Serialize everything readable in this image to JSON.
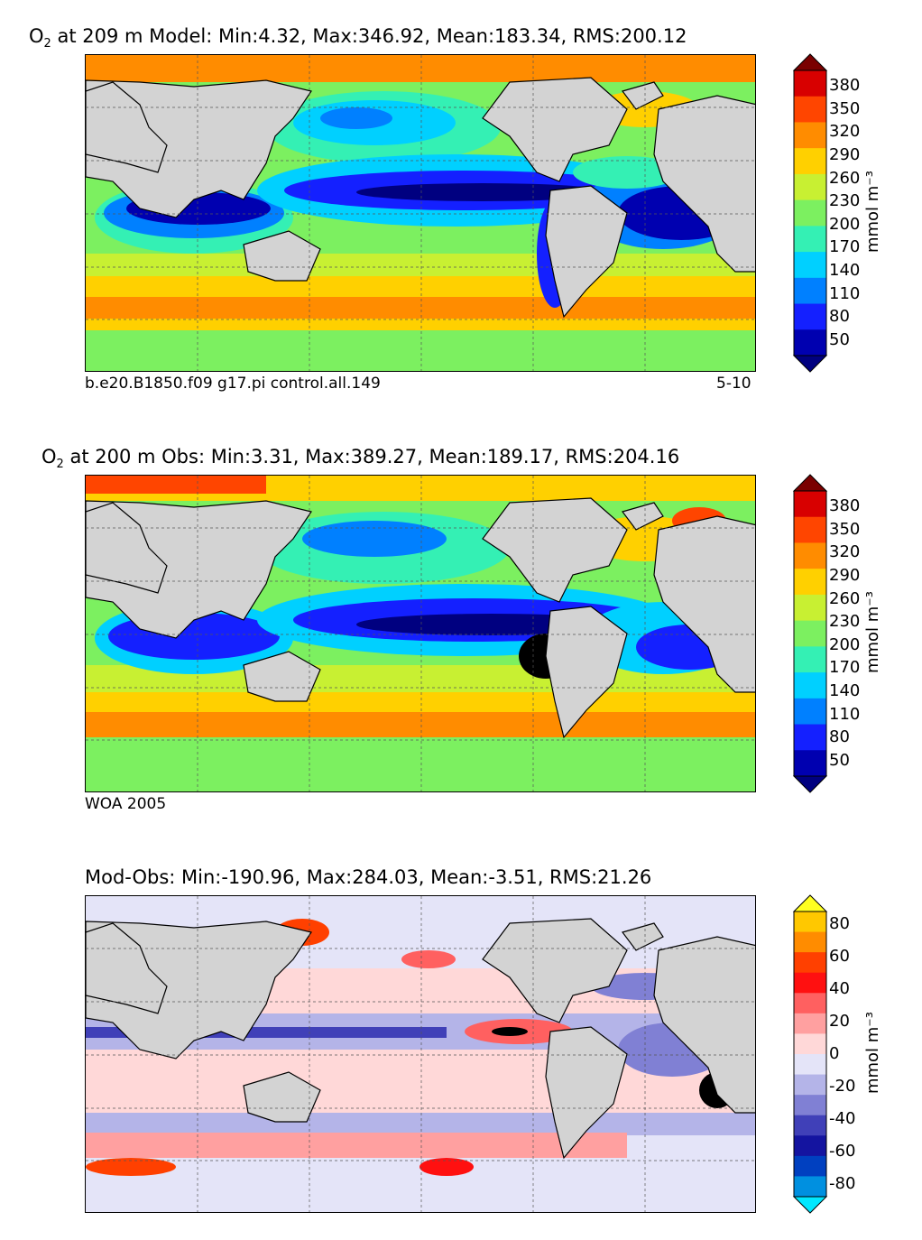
{
  "panels": [
    {
      "id": "model",
      "title_prefix": "O",
      "title_sub": "2",
      "title_rest": " at 209 m Model: Min:4.32, Max:346.92, Mean:183.34, RMS:200.12",
      "caption_left": "b.e20.B1850.f09 g17.pi control.all.149",
      "caption_right": "5-10",
      "colorbar_ticks": [
        "380",
        "350",
        "320",
        "290",
        "260",
        "230",
        "200",
        "170",
        "140",
        "110",
        "80",
        "50"
      ],
      "colorbar_colors": [
        "#7a0000",
        "#d80000",
        "#ff4500",
        "#ff8c00",
        "#ffd000",
        "#c8f032",
        "#7cf060",
        "#34f0b4",
        "#00d0ff",
        "#0080ff",
        "#1420ff",
        "#0000b0",
        "#000080"
      ],
      "unit": "mmol m⁻³"
    },
    {
      "id": "obs",
      "title_prefix": "O",
      "title_sub": "2",
      "title_rest": " at 200 m Obs: Min:3.31, Max:389.27, Mean:189.17, RMS:204.16",
      "caption_left": "WOA 2005",
      "caption_right": "",
      "colorbar_ticks": [
        "380",
        "350",
        "320",
        "290",
        "260",
        "230",
        "200",
        "170",
        "140",
        "110",
        "80",
        "50"
      ],
      "colorbar_colors": [
        "#7a0000",
        "#d80000",
        "#ff4500",
        "#ff8c00",
        "#ffd000",
        "#c8f032",
        "#7cf060",
        "#34f0b4",
        "#00d0ff",
        "#0080ff",
        "#1420ff",
        "#0000b0",
        "#000080"
      ],
      "unit": "mmol m⁻³"
    },
    {
      "id": "diff",
      "title_prefix": "",
      "title_sub": "",
      "title_rest": "Mod-Obs: Min:-190.96, Max:284.03, Mean:-3.51, RMS:21.26",
      "caption_left": "",
      "caption_right": "",
      "colorbar_ticks": [
        "80",
        "60",
        "40",
        "20",
        "0",
        "-20",
        "-40",
        "-60",
        "-80"
      ],
      "colorbar_colors": [
        "#ffff20",
        "#ffc800",
        "#ff8c00",
        "#ff4000",
        "#ff1010",
        "#ff6060",
        "#ffa0a0",
        "#ffd8d8",
        "#e4e4f8",
        "#b4b4e8",
        "#8080d4",
        "#4040b8",
        "#1414a0",
        "#0040c0",
        "#0090e0",
        "#00e8ff"
      ],
      "unit": "mmol m⁻³"
    }
  ],
  "colors": {
    "land": "#d3d3d3",
    "missing": "#ffffff"
  }
}
